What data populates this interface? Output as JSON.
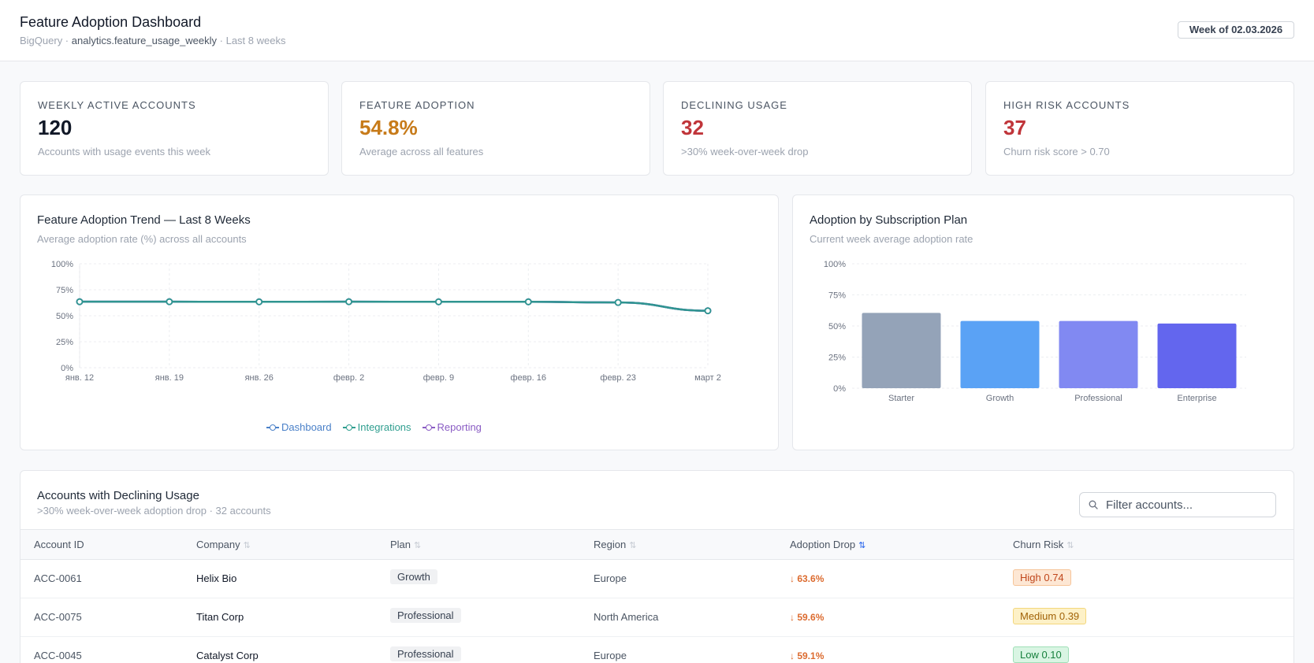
{
  "header": {
    "title": "Feature Adoption Dashboard",
    "source": "BigQuery · ",
    "table": "analytics.feature_usage_weekly",
    "range": " · Last 8 weeks",
    "week_badge": "Week of 02.03.2026"
  },
  "kpis": [
    {
      "label": "WEEKLY ACTIVE ACCOUNTS",
      "value": "120",
      "desc": "Accounts with usage events this week",
      "color": "#111827"
    },
    {
      "label": "FEATURE ADOPTION",
      "value": "54.8%",
      "desc": "Average across all features",
      "color": "#c77b1a"
    },
    {
      "label": "DECLINING USAGE",
      "value": "32",
      "desc": ">30% week-over-week drop",
      "color": "#c0353a"
    },
    {
      "label": "HIGH RISK ACCOUNTS",
      "value": "37",
      "desc": "Churn risk score > 0.70",
      "color": "#c0353a"
    }
  ],
  "trend_card": {
    "title": "Feature Adoption Trend — Last 8 Weeks",
    "subtitle": "Average adoption rate (%) across all accounts"
  },
  "plan_card": {
    "title": "Adoption by Subscription Plan",
    "subtitle": "Current week average adoption rate"
  },
  "chart_data": [
    {
      "type": "line",
      "title": "Feature Adoption Trend — Last 8 Weeks",
      "x": [
        "янв. 12",
        "янв. 19",
        "янв. 26",
        "февр. 2",
        "февр. 9",
        "февр. 16",
        "февр. 23",
        "март 2"
      ],
      "yticks": [
        "0%",
        "25%",
        "50%",
        "75%",
        "100%"
      ],
      "ylim": [
        0,
        100
      ],
      "series": [
        {
          "name": "Dashboard",
          "color": "#4a80c8",
          "values": [
            63.5,
            63.5,
            63.4,
            63.5,
            63.4,
            63.4,
            62.8,
            54.8
          ]
        },
        {
          "name": "Integrations",
          "color": "#2f9e8f",
          "values": [
            63.5,
            63.5,
            63.4,
            63.5,
            63.4,
            63.4,
            62.8,
            54.8
          ]
        },
        {
          "name": "Reporting",
          "color": "#8a5cc4",
          "values": [
            63.5,
            63.5,
            63.4,
            63.5,
            63.4,
            63.4,
            62.8,
            54.8
          ]
        }
      ]
    },
    {
      "type": "bar",
      "title": "Adoption by Subscription Plan",
      "categories": [
        "Starter",
        "Growth",
        "Professional",
        "Enterprise"
      ],
      "values": [
        60.5,
        54,
        54,
        52
      ],
      "colors": [
        "#94a3b8",
        "#5aa2f5",
        "#8189f2",
        "#6366ee"
      ],
      "yticks": [
        "0%",
        "25%",
        "50%",
        "75%",
        "100%"
      ],
      "ylim": [
        0,
        100
      ]
    }
  ],
  "table": {
    "title": "Accounts with Declining Usage",
    "subtitle": ">30% week-over-week adoption drop · 32 accounts",
    "filter_placeholder": "Filter accounts...",
    "columns": [
      "Account ID",
      "Company",
      "Plan",
      "Region",
      "Adoption Drop",
      "Churn Risk"
    ],
    "sort_icon": "⇅",
    "rows": [
      {
        "id": "ACC-0061",
        "company": "Helix Bio",
        "plan": "Growth",
        "region": "Europe",
        "drop": "↓ 63.6%",
        "risk": "High 0.74",
        "risk_bg": "#fde7d4",
        "risk_border": "#f6c59a",
        "risk_color": "#c0461b"
      },
      {
        "id": "ACC-0075",
        "company": "Titan Corp",
        "plan": "Professional",
        "region": "North America",
        "drop": "↓ 59.6%",
        "risk": "Medium 0.39",
        "risk_bg": "#fdf1c7",
        "risk_border": "#f3d77c",
        "risk_color": "#a16207"
      },
      {
        "id": "ACC-0045",
        "company": "Catalyst Corp",
        "plan": "Professional",
        "region": "Europe",
        "drop": "↓ 59.1%",
        "risk": "Low 0.10",
        "risk_bg": "#d9f5e3",
        "risk_border": "#9fdfb7",
        "risk_color": "#16803c"
      }
    ]
  }
}
